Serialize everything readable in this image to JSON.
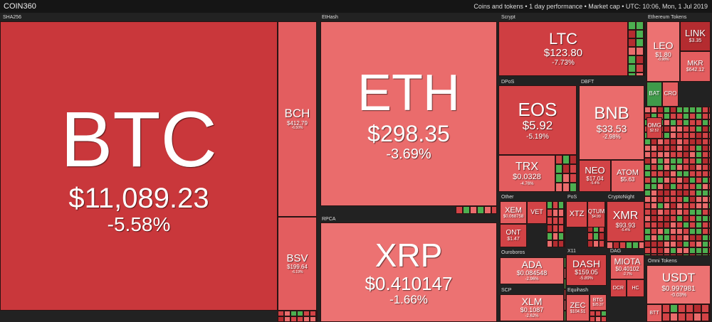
{
  "header": {
    "logo": "COIN360",
    "info": "Coins and tokens • 1 day performance • Market cap • UTC: 10:06, Mon, 1 Jul 2019"
  },
  "groups": [
    "SHA256",
    "EtHash",
    "RPCA",
    "Scrypt",
    "Ethereum Tokens",
    "DPoS",
    "DBFT",
    "Other",
    "PoS",
    "CryptoNight",
    "Ouroboros",
    "SCP",
    "X11",
    "DAG",
    "Equihash",
    "Omni Tokens"
  ],
  "tiles": [
    {
      "symbol": "BTC",
      "price": "$11,089.23",
      "change": "-5.58%",
      "color": "#c9373b"
    },
    {
      "symbol": "BCH",
      "price": "$412.79",
      "change": "-6.50%",
      "color": "#e35d5f"
    },
    {
      "symbol": "BSV",
      "price": "$199.64",
      "change": "-6.19%",
      "color": "#e35d5f"
    },
    {
      "symbol": "ETH",
      "price": "$298.35",
      "change": "-3.69%",
      "color": "#ea6c6c"
    },
    {
      "symbol": "XRP",
      "price": "$0.410147",
      "change": "-1.66%",
      "color": "#ec7272"
    },
    {
      "symbol": "LTC",
      "price": "$123.80",
      "change": "-7.73%",
      "color": "#cf3e42"
    },
    {
      "symbol": "LEO",
      "price": "$1.80",
      "change": "-0.98%",
      "color": "#ec7272"
    },
    {
      "symbol": "LINK",
      "price": "$3.35",
      "color": "#b42c30"
    },
    {
      "symbol": "MKR",
      "price": "$642.12",
      "color": "#e35d5f"
    },
    {
      "symbol": "EOS",
      "price": "$5.92",
      "change": "-5.19%",
      "color": "#d24346"
    },
    {
      "symbol": "TRX",
      "price": "$0.0328",
      "change": "-4.76%",
      "color": "#e35d5f"
    },
    {
      "symbol": "BNB",
      "price": "$33.53",
      "change": "-2.98%",
      "color": "#ea6c6c"
    },
    {
      "symbol": "NEO",
      "price": "$17.04",
      "change": "-5.4%",
      "color": "#d24346"
    },
    {
      "symbol": "ATOM",
      "price": "$5.63",
      "color": "#e35d5f"
    },
    {
      "symbol": "XEM",
      "price": "$0.068758",
      "color": "#e35d5f"
    },
    {
      "symbol": "VET",
      "color": "#d24346"
    },
    {
      "symbol": "ONT",
      "price": "$1.47",
      "color": "#d24346"
    },
    {
      "symbol": "XTZ",
      "color": "#d24346"
    },
    {
      "symbol": "QTUM",
      "price": "$4.99",
      "color": "#d24346"
    },
    {
      "symbol": "XMR",
      "price": "$93.93",
      "change": "-5.4%",
      "color": "#d24346"
    },
    {
      "symbol": "ADA",
      "price": "$0.084548",
      "change": "-2.96%",
      "color": "#ea6c6c"
    },
    {
      "symbol": "XLM",
      "price": "$0.1087",
      "change": "-2.62%",
      "color": "#ea6c6c"
    },
    {
      "symbol": "DASH",
      "price": "$159.05",
      "change": "-5.89%",
      "color": "#d24346"
    },
    {
      "symbol": "MIOTA",
      "price": "$0.40102",
      "change": "-2.7%",
      "color": "#e35d5f"
    },
    {
      "symbol": "DCR",
      "color": "#d24346"
    },
    {
      "symbol": "HC",
      "color": "#d24346"
    },
    {
      "symbol": "ZEC",
      "price": "$104.51",
      "color": "#e35d5f"
    },
    {
      "symbol": "BTG",
      "price": "$25.37",
      "color": "#e35d5f"
    },
    {
      "symbol": "USDT",
      "price": "$0.997981",
      "change": "-0.03%",
      "color": "#ec7272"
    },
    {
      "symbol": "BAT",
      "color": "#3f9a4a"
    },
    {
      "symbol": "CRO",
      "color": "#e35d5f"
    },
    {
      "symbol": "OMG",
      "price": "$2.52",
      "color": "#d24346"
    },
    {
      "symbol": "BTT",
      "color": "#e35d5f"
    }
  ]
}
